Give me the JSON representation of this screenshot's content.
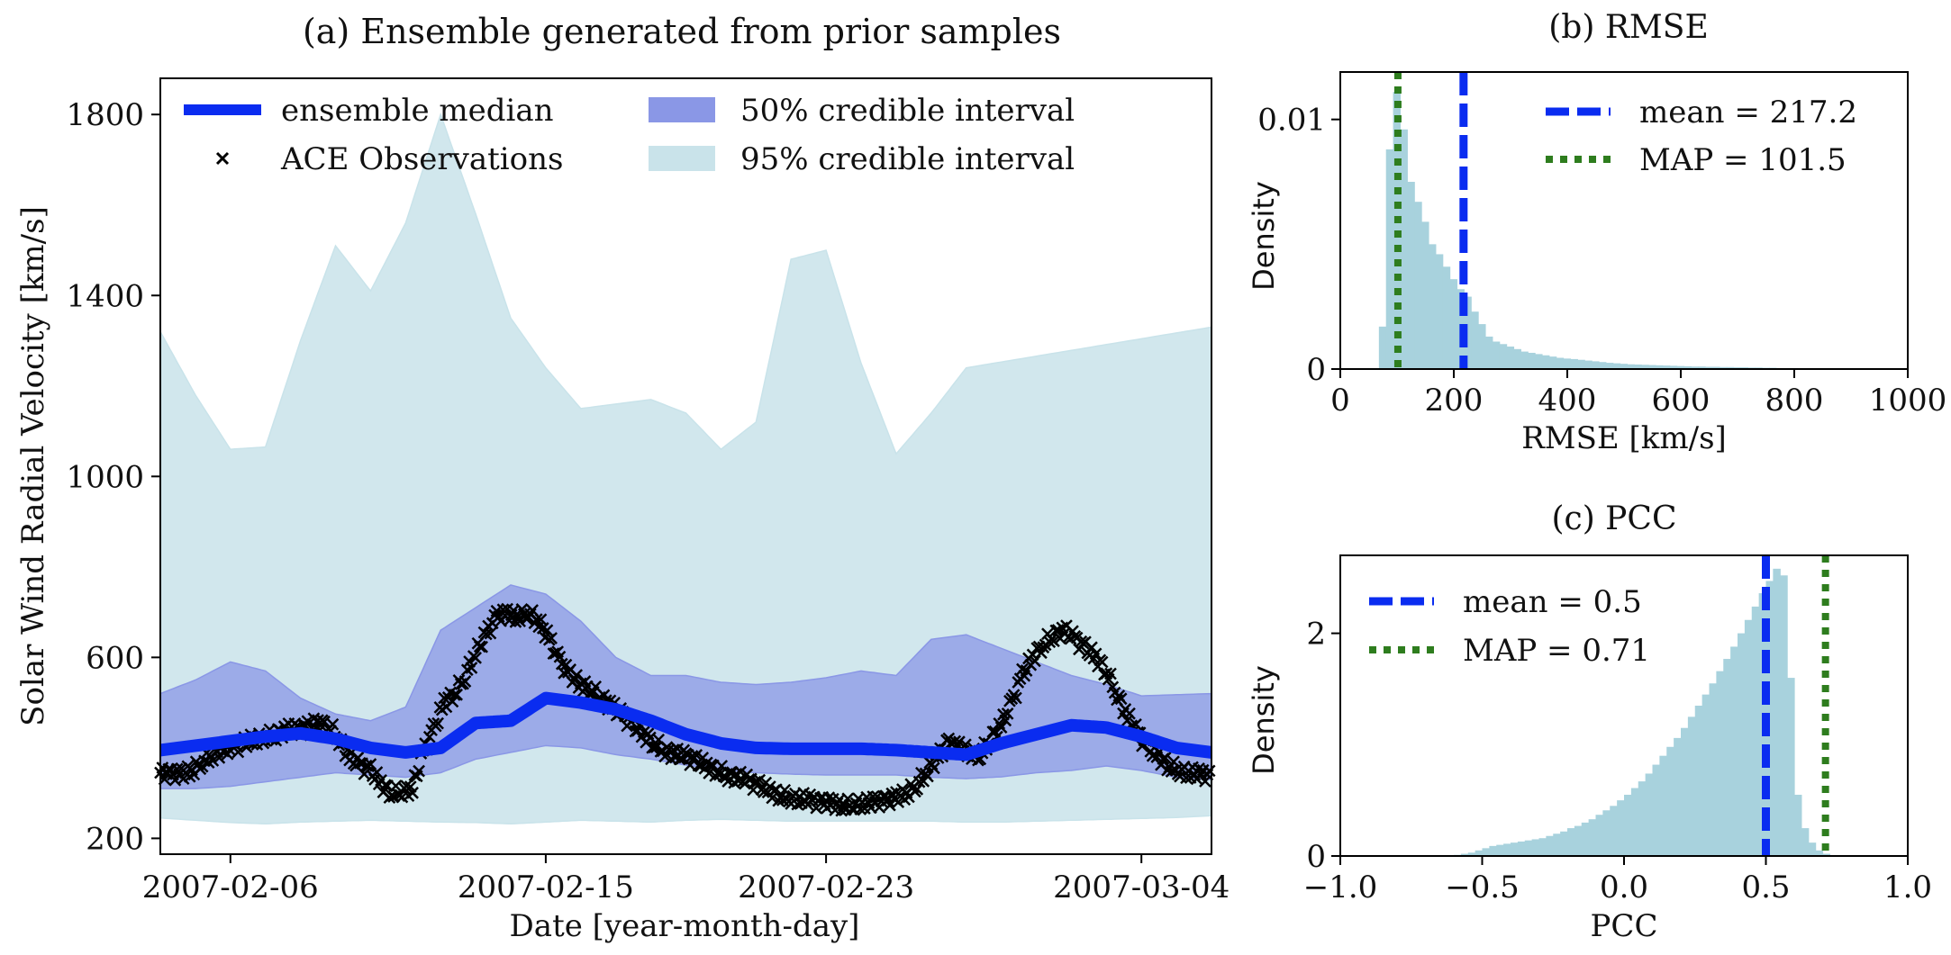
{
  "colors": {
    "median": "#0a2cf0",
    "band50": "#8a97e6",
    "band95": "#c9e3ea",
    "obs": "#000000",
    "hist": "#a8d2dd",
    "mean_line": "#0a2cf0",
    "map_line": "#2e7d1e"
  },
  "chart_data": [
    {
      "id": "a",
      "type": "line",
      "title": "(a) Ensemble generated from prior samples",
      "xlabel": "Date [year-month-day]",
      "ylabel": "Solar Wind Radial Velocity [km/s]",
      "x_tick_labels": [
        "2007-02-06",
        "2007-02-15",
        "2007-02-23",
        "2007-03-04"
      ],
      "x_tick_days": [
        2,
        11,
        19,
        28
      ],
      "xlim_days": [
        0,
        30
      ],
      "ylim": [
        165,
        1880
      ],
      "y_ticks": [
        200,
        600,
        1000,
        1400,
        1800
      ],
      "legend": {
        "placement": "top",
        "median_label": "ensemble median",
        "obs_label": "ACE Observations",
        "ci50_label": "50% credible interval",
        "ci95_label": "95% credible interval"
      },
      "x_days": [
        0,
        1,
        2,
        3,
        4,
        5,
        6,
        7,
        8,
        9,
        10,
        11,
        12,
        13,
        14,
        15,
        16,
        17,
        18,
        19,
        20,
        21,
        22,
        23,
        24,
        25,
        26,
        27,
        28,
        29,
        30
      ],
      "median": [
        395,
        405,
        415,
        425,
        432,
        420,
        400,
        390,
        400,
        455,
        460,
        510,
        500,
        485,
        460,
        430,
        410,
        400,
        398,
        398,
        398,
        395,
        390,
        385,
        410,
        430,
        450,
        445,
        425,
        400,
        390
      ],
      "ci95_lower": [
        245,
        240,
        235,
        232,
        236,
        238,
        240,
        238,
        236,
        235,
        232,
        236,
        240,
        238,
        236,
        240,
        242,
        240,
        238,
        238,
        238,
        238,
        238,
        236,
        236,
        238,
        240,
        242,
        244,
        246,
        250
      ],
      "ci95_upper": [
        1320,
        1180,
        1060,
        1065,
        1300,
        1510,
        1410,
        1560,
        1800,
        1580,
        1350,
        1240,
        1150,
        1160,
        1170,
        1140,
        1060,
        1120,
        1480,
        1500,
        1250,
        1050,
        1140,
        1240,
        1330
      ],
      "ci95_upper_days": [
        0,
        1,
        2,
        3,
        4,
        5,
        6,
        7,
        8,
        9,
        10,
        11,
        12,
        13,
        14,
        15,
        16,
        17,
        18,
        19,
        20,
        21,
        22,
        23,
        30
      ],
      "ci50_lower": [
        310,
        310,
        315,
        325,
        335,
        345,
        340,
        335,
        345,
        375,
        390,
        405,
        400,
        385,
        375,
        362,
        352,
        345,
        342,
        340,
        340,
        340,
        335,
        332,
        336,
        345,
        350,
        360,
        350,
        335,
        330
      ],
      "ci50_upper": [
        520,
        550,
        590,
        570,
        510,
        475,
        460,
        490,
        660,
        710,
        760,
        740,
        680,
        600,
        560,
        560,
        545,
        540,
        545,
        555,
        570,
        560,
        640,
        650,
        560,
        540,
        515,
        520
      ],
      "ci50_upper_days": [
        0,
        1,
        2,
        3,
        4,
        5,
        6,
        7,
        8,
        9,
        10,
        11,
        12,
        13,
        14,
        15,
        16,
        17,
        18,
        19,
        20,
        21,
        22,
        23,
        26,
        27,
        28,
        30
      ],
      "obs_days": [
        0,
        0.3,
        0.6,
        0.9,
        1.2,
        1.5,
        1.8,
        2.1,
        2.4,
        2.7,
        3.0,
        3.3,
        3.6,
        3.9,
        4.2,
        4.5,
        4.8,
        5.1,
        5.4,
        5.7,
        6.0,
        6.3,
        6.6,
        6.9,
        7.2,
        7.5,
        7.8,
        8.1,
        8.4,
        8.7,
        9.0,
        9.3,
        9.6,
        9.9,
        10.2,
        10.5,
        10.8,
        11.1,
        11.4,
        11.7,
        12.0,
        12.3,
        12.6,
        12.9,
        13.2,
        13.5,
        13.8,
        14.1,
        14.4,
        14.7,
        15.0,
        15.3,
        15.6,
        15.9,
        16.2,
        16.5,
        16.8,
        17.1,
        17.4,
        17.7,
        18.0,
        18.3,
        18.6,
        18.9,
        19.2,
        19.5,
        19.8,
        20.1,
        20.4,
        20.7,
        21.0,
        21.3,
        21.6,
        21.9,
        22.2,
        22.5,
        22.8,
        23.1,
        23.4,
        23.7,
        24.0,
        24.3,
        24.6,
        24.9,
        25.2,
        25.5,
        25.8,
        26.1,
        26.4,
        26.7,
        27.0,
        27.3,
        27.6,
        27.9,
        28.2,
        28.5,
        28.8,
        29.1,
        29.4,
        29.7,
        30
      ],
      "obs_values": [
        345,
        340,
        342,
        350,
        370,
        385,
        395,
        400,
        410,
        420,
        425,
        430,
        440,
        440,
        445,
        455,
        450,
        420,
        380,
        360,
        350,
        320,
        300,
        305,
        310,
        390,
        440,
        500,
        520,
        560,
        610,
        650,
        690,
        695,
        690,
        700,
        680,
        640,
        590,
        560,
        540,
        530,
        510,
        490,
        470,
        450,
        430,
        410,
        395,
        385,
        380,
        370,
        360,
        350,
        340,
        335,
        325,
        315,
        305,
        295,
        290,
        288,
        282,
        278,
        276,
        274,
        276,
        278,
        280,
        282,
        290,
        300,
        320,
        350,
        380,
        410,
        400,
        390,
        385,
        420,
        450,
        500,
        560,
        600,
        630,
        650,
        660,
        640,
        620,
        600,
        570,
        520,
        470,
        430,
        400,
        380,
        360,
        350,
        345,
        340,
        338
      ]
    },
    {
      "id": "b",
      "type": "bar",
      "title": "(b) RMSE",
      "xlabel": "RMSE [km/s]",
      "ylabel": "Density",
      "xlim": [
        0,
        1000
      ],
      "ylim": [
        0,
        0.0119
      ],
      "x_ticks": [
        0,
        200,
        400,
        600,
        800,
        1000
      ],
      "y_tick_values": [
        0,
        0.01
      ],
      "y_tick_labels": [
        "0",
        "0.01"
      ],
      "bin_width": 12.5,
      "bin_start": 68,
      "densities": [
        0.0017,
        0.0088,
        0.0111,
        0.0096,
        0.0075,
        0.0067,
        0.0059,
        0.005,
        0.0046,
        0.0041,
        0.0036,
        0.0032,
        0.0029,
        0.0023,
        0.0018,
        0.0013,
        0.0011,
        0.001,
        0.0009,
        0.0008,
        0.0007,
        0.00065,
        0.0006,
        0.00055,
        0.0005,
        0.00045,
        0.00042,
        0.0004,
        0.00037,
        0.00034,
        0.00031,
        0.00028,
        0.00025,
        0.00023,
        0.00021,
        0.00019,
        0.00018,
        0.00017,
        0.00016,
        0.00015,
        0.00014,
        0.00013,
        0.00012,
        0.00011,
        0.0001,
        0.0001,
        9e-05,
        9e-05,
        8e-05,
        8e-05,
        7e-05,
        7e-05,
        6e-05,
        6e-05,
        5e-05,
        5e-05,
        4e-05,
        4e-05,
        4e-05,
        3e-05,
        3e-05,
        3e-05,
        3e-05,
        2e-05,
        2e-05,
        2e-05,
        2e-05,
        1e-05,
        1e-05,
        1e-05,
        1e-05,
        1e-05,
        1e-05,
        1e-05,
        1e-05
      ],
      "mean": 217.2,
      "map": 101.5,
      "legend": {
        "placement": "top-right",
        "mean_label": "mean = 217.2",
        "map_label": "MAP = 101.5"
      }
    },
    {
      "id": "c",
      "type": "bar",
      "title": "(c) PCC",
      "xlabel": "PCC",
      "ylabel": "Density",
      "xlim": [
        -1.0,
        1.0
      ],
      "ylim": [
        0,
        2.7
      ],
      "x_ticks": [
        -1.0,
        -0.5,
        0.0,
        0.5,
        1.0
      ],
      "x_tick_labels": [
        "−1.0",
        "−0.5",
        "0.0",
        "0.5",
        "1.0"
      ],
      "y_ticks": [
        0,
        2
      ],
      "bin_width": 0.025,
      "bin_start": -0.6,
      "densities": [
        0.01,
        0.02,
        0.03,
        0.05,
        0.07,
        0.09,
        0.1,
        0.11,
        0.12,
        0.13,
        0.14,
        0.15,
        0.16,
        0.18,
        0.2,
        0.22,
        0.25,
        0.27,
        0.3,
        0.33,
        0.37,
        0.41,
        0.45,
        0.5,
        0.55,
        0.61,
        0.67,
        0.74,
        0.82,
        0.9,
        0.98,
        1.06,
        1.15,
        1.25,
        1.35,
        1.45,
        1.55,
        1.66,
        1.77,
        1.88,
        2.0,
        2.12,
        2.24,
        2.36,
        2.47,
        2.58,
        2.52,
        1.6,
        0.55,
        0.25,
        0.12,
        0.05,
        0.02
      ],
      "mean": 0.5,
      "map": 0.71,
      "legend": {
        "placement": "top-left",
        "mean_label": "mean = 0.5",
        "map_label": "MAP = 0.71"
      }
    }
  ]
}
